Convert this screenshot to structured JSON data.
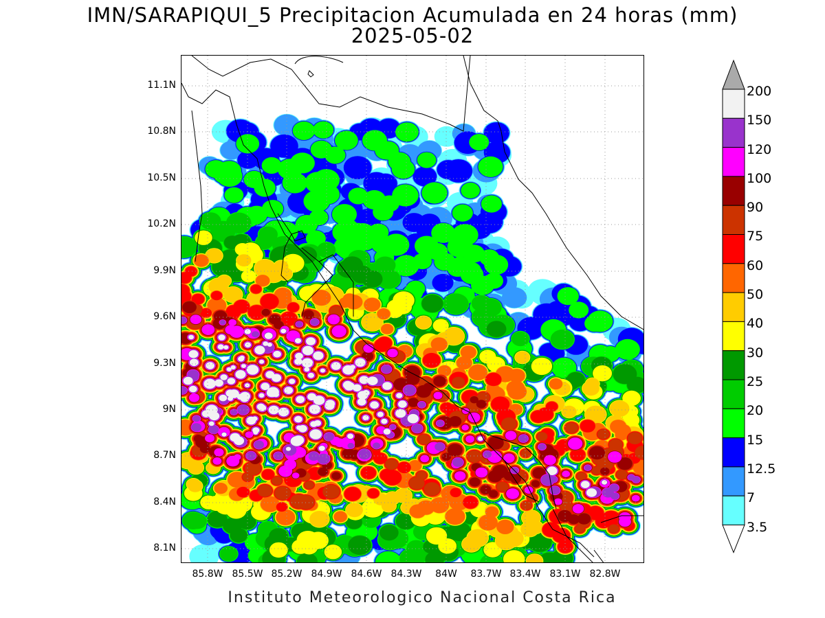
{
  "header": {
    "title": "IMN/SARAPIQUI_5 Precipitacion Acumulada en 24 horas (mm)",
    "date": "2025-05-02"
  },
  "map": {
    "lat_labels": [
      "11.1N",
      "10.8N",
      "10.5N",
      "10.2N",
      "9.9N",
      "9.6N",
      "9.3N",
      "9N",
      "8.7N",
      "8.4N",
      "8.1N"
    ],
    "lon_labels": [
      "85.8W",
      "85.5W",
      "85.2W",
      "84.9W",
      "84.6W",
      "84.3W",
      "84W",
      "83.7W",
      "83.4W",
      "83.1W",
      "82.8W"
    ]
  },
  "colorbar": {
    "labels": [
      "200",
      "150",
      "120",
      "100",
      "90",
      "75",
      "60",
      "50",
      "40",
      "30",
      "25",
      "20",
      "15",
      "12.5",
      "7",
      "3.5"
    ],
    "colors": [
      "#f2f2f2",
      "#9933cc",
      "#ff00ff",
      "#990000",
      "#cc3300",
      "#ff0000",
      "#ff6600",
      "#ffcc00",
      "#ffff00",
      "#009900",
      "#00cc00",
      "#00ff00",
      "#0000ff",
      "#3399ff",
      "#66ffff"
    ],
    "over_color": "#aaaaaa"
  },
  "footer": {
    "text": "Instituto Meteorologico Nacional Costa Rica"
  }
}
